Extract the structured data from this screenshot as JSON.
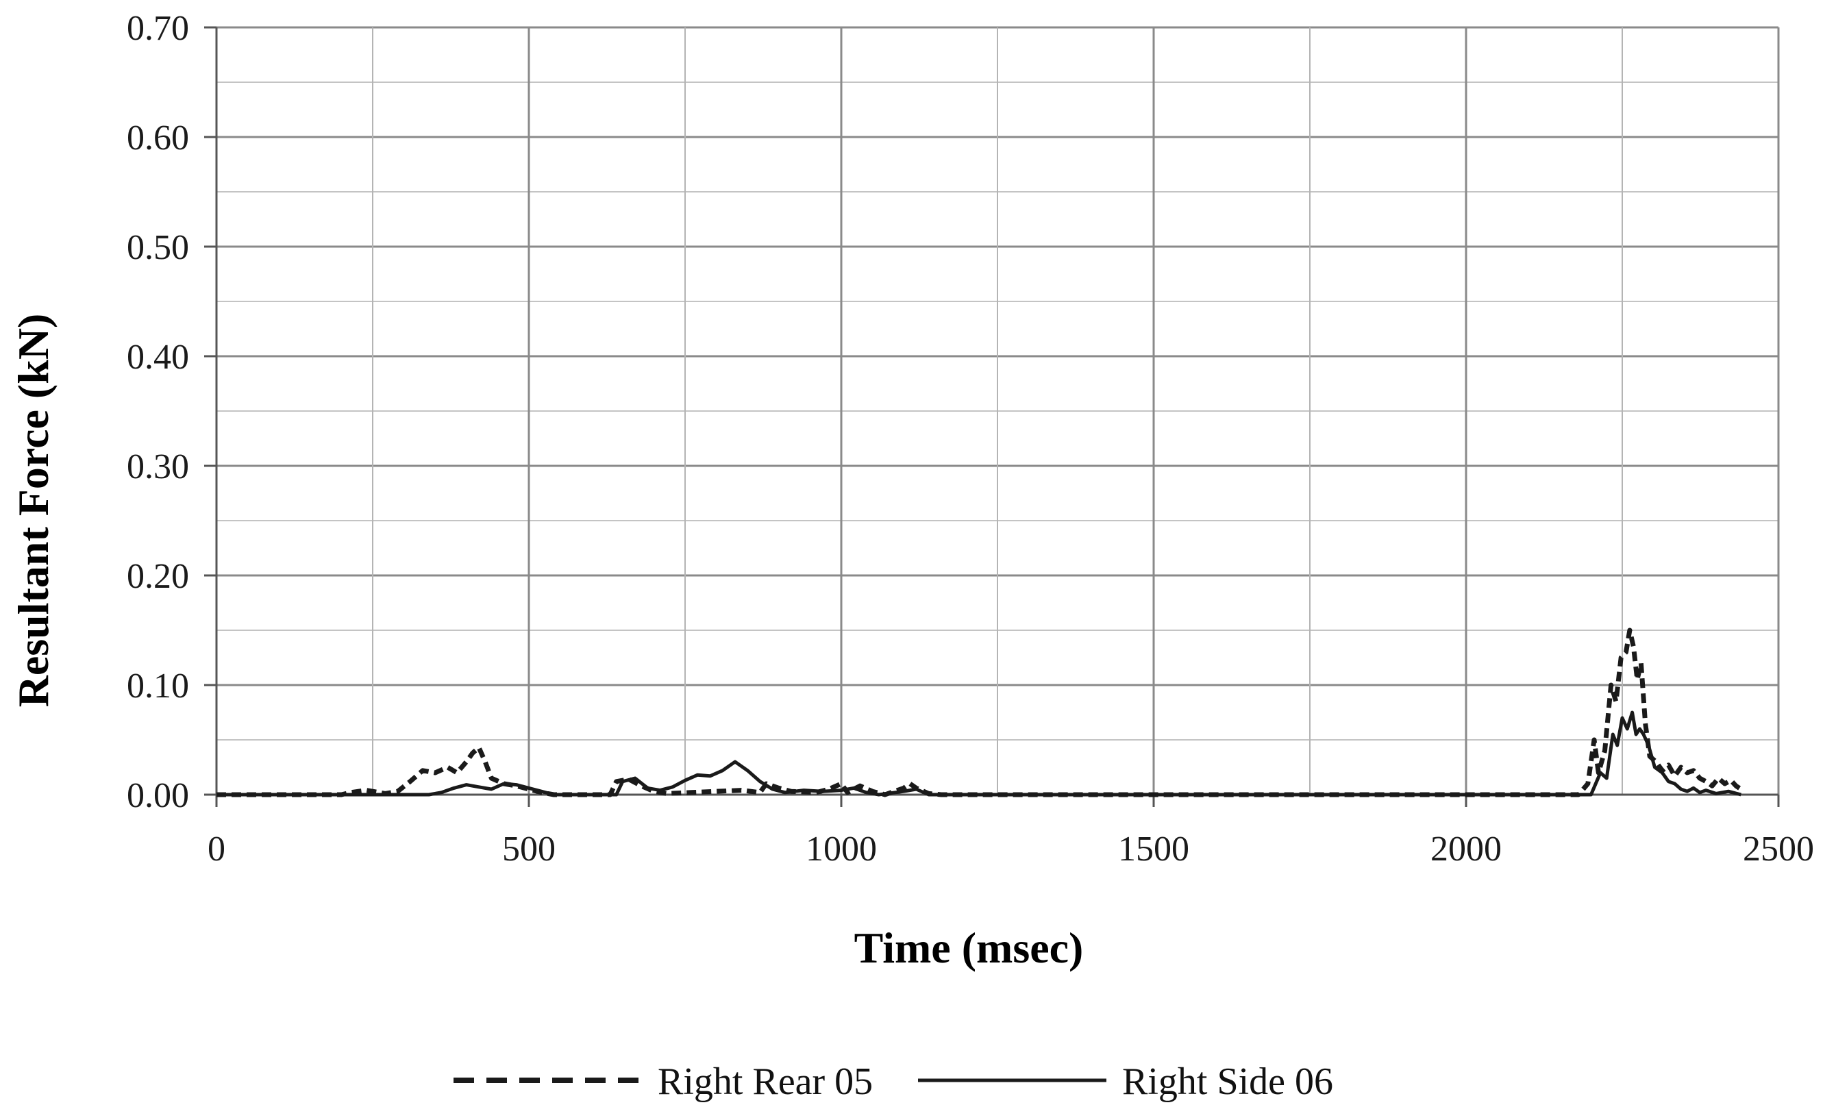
{
  "chart_data": {
    "type": "line",
    "title": "",
    "xlabel": "Time (msec)",
    "ylabel": "Resultant Force (kN)",
    "xlim": [
      0,
      2500
    ],
    "ylim": [
      0,
      0.7
    ],
    "x_ticks": [
      "0",
      "500",
      "1000",
      "1500",
      "2000",
      "2500"
    ],
    "y_ticks": [
      "0.00",
      "0.10",
      "0.20",
      "0.30",
      "0.40",
      "0.50",
      "0.60",
      "0.70"
    ],
    "grid": true,
    "legend_position": "bottom",
    "series": [
      {
        "name": "Right Rear 05",
        "style": "dashed",
        "color": "#1a1a1a",
        "points": [
          [
            0,
            0
          ],
          [
            200,
            0
          ],
          [
            215,
            0.002
          ],
          [
            240,
            0.004
          ],
          [
            270,
            0.001
          ],
          [
            290,
            0.003
          ],
          [
            310,
            0.012
          ],
          [
            330,
            0.022
          ],
          [
            350,
            0.02
          ],
          [
            370,
            0.025
          ],
          [
            385,
            0.02
          ],
          [
            400,
            0.03
          ],
          [
            410,
            0.038
          ],
          [
            420,
            0.043
          ],
          [
            430,
            0.03
          ],
          [
            440,
            0.015
          ],
          [
            460,
            0.01
          ],
          [
            480,
            0.008
          ],
          [
            500,
            0.005
          ],
          [
            520,
            0.002
          ],
          [
            540,
            0
          ],
          [
            630,
            0
          ],
          [
            640,
            0.012
          ],
          [
            660,
            0.014
          ],
          [
            680,
            0.008
          ],
          [
            700,
            0.003
          ],
          [
            720,
            0.001
          ],
          [
            760,
            0.002
          ],
          [
            800,
            0.003
          ],
          [
            840,
            0.004
          ],
          [
            870,
            0.002
          ],
          [
            880,
            0.01
          ],
          [
            900,
            0.006
          ],
          [
            920,
            0.003
          ],
          [
            960,
            0.002
          ],
          [
            980,
            0.005
          ],
          [
            1000,
            0.01
          ],
          [
            1010,
            0.002
          ],
          [
            1030,
            0.008
          ],
          [
            1050,
            0.003
          ],
          [
            1070,
            0
          ],
          [
            1100,
            0.006
          ],
          [
            1110,
            0.01
          ],
          [
            1120,
            0.006
          ],
          [
            1140,
            0.001
          ],
          [
            1160,
            0
          ],
          [
            2180,
            0
          ],
          [
            2195,
            0.01
          ],
          [
            2205,
            0.05
          ],
          [
            2212,
            0.02
          ],
          [
            2222,
            0.04
          ],
          [
            2232,
            0.1
          ],
          [
            2240,
            0.085
          ],
          [
            2248,
            0.125
          ],
          [
            2256,
            0.13
          ],
          [
            2262,
            0.15
          ],
          [
            2268,
            0.135
          ],
          [
            2274,
            0.105
          ],
          [
            2280,
            0.12
          ],
          [
            2287,
            0.065
          ],
          [
            2294,
            0.035
          ],
          [
            2304,
            0.03
          ],
          [
            2314,
            0.022
          ],
          [
            2324,
            0.027
          ],
          [
            2334,
            0.017
          ],
          [
            2344,
            0.025
          ],
          [
            2354,
            0.02
          ],
          [
            2364,
            0.022
          ],
          [
            2374,
            0.015
          ],
          [
            2384,
            0.012
          ],
          [
            2394,
            0.008
          ],
          [
            2404,
            0.015
          ],
          [
            2414,
            0.01
          ],
          [
            2424,
            0.013
          ],
          [
            2432,
            0.008
          ],
          [
            2440,
            0.005
          ]
        ]
      },
      {
        "name": "Right Side 06",
        "style": "solid",
        "color": "#1a1a1a",
        "points": [
          [
            0,
            0
          ],
          [
            340,
            0
          ],
          [
            360,
            0.002
          ],
          [
            380,
            0.006
          ],
          [
            400,
            0.009
          ],
          [
            420,
            0.007
          ],
          [
            440,
            0.005
          ],
          [
            460,
            0.01
          ],
          [
            480,
            0.009
          ],
          [
            500,
            0.006
          ],
          [
            520,
            0.003
          ],
          [
            540,
            0
          ],
          [
            640,
            0
          ],
          [
            650,
            0.012
          ],
          [
            670,
            0.015
          ],
          [
            690,
            0.006
          ],
          [
            710,
            0.004
          ],
          [
            730,
            0.007
          ],
          [
            750,
            0.013
          ],
          [
            770,
            0.018
          ],
          [
            790,
            0.017
          ],
          [
            810,
            0.022
          ],
          [
            830,
            0.03
          ],
          [
            850,
            0.022
          ],
          [
            870,
            0.012
          ],
          [
            890,
            0.005
          ],
          [
            910,
            0.002
          ],
          [
            940,
            0.004
          ],
          [
            970,
            0.003
          ],
          [
            1000,
            0.004
          ],
          [
            1020,
            0.006
          ],
          [
            1040,
            0.002
          ],
          [
            1060,
            0
          ],
          [
            1100,
            0.003
          ],
          [
            1120,
            0.005
          ],
          [
            1140,
            0
          ],
          [
            2200,
            0
          ],
          [
            2215,
            0.02
          ],
          [
            2225,
            0.015
          ],
          [
            2235,
            0.055
          ],
          [
            2242,
            0.045
          ],
          [
            2250,
            0.07
          ],
          [
            2258,
            0.06
          ],
          [
            2266,
            0.075
          ],
          [
            2272,
            0.055
          ],
          [
            2278,
            0.06
          ],
          [
            2284,
            0.055
          ],
          [
            2292,
            0.045
          ],
          [
            2302,
            0.025
          ],
          [
            2314,
            0.02
          ],
          [
            2324,
            0.012
          ],
          [
            2334,
            0.01
          ],
          [
            2344,
            0.005
          ],
          [
            2354,
            0.003
          ],
          [
            2364,
            0.006
          ],
          [
            2374,
            0.002
          ],
          [
            2384,
            0.004
          ],
          [
            2400,
            0.001
          ],
          [
            2420,
            0.003
          ],
          [
            2440,
            0
          ]
        ]
      }
    ]
  }
}
